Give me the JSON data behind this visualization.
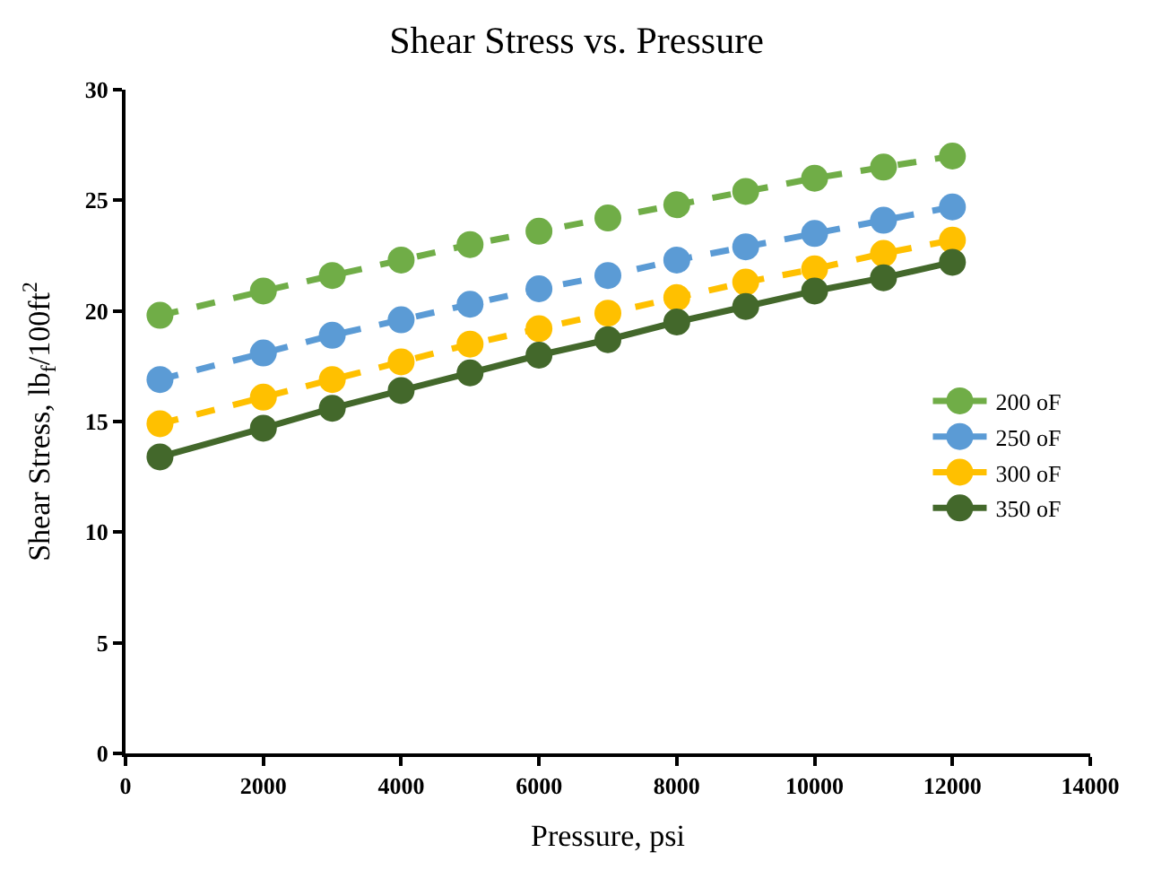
{
  "chart_data": {
    "type": "line",
    "title": "Shear Stress vs. Pressure",
    "xlabel": "Pressure, psi",
    "ylabel": "Shear Stress, lb$_{f}$/100ft$^{2}$",
    "x": [
      500,
      2000,
      3000,
      4000,
      5000,
      6000,
      7000,
      8000,
      9000,
      10000,
      11000,
      12000
    ],
    "series": [
      {
        "name": "200 oF",
        "color": "#70ad47",
        "line_style": "dashed",
        "values": [
          19.8,
          20.9,
          21.6,
          22.3,
          23.0,
          23.6,
          24.2,
          24.8,
          25.4,
          26.0,
          26.5,
          27.0
        ]
      },
      {
        "name": "250 oF",
        "color": "#5b9bd5",
        "line_style": "dashed",
        "values": [
          16.9,
          18.1,
          18.9,
          19.6,
          20.3,
          21.0,
          21.6,
          22.3,
          22.9,
          23.5,
          24.1,
          24.7
        ]
      },
      {
        "name": "300 oF",
        "color": "#ffc000",
        "line_style": "dashed",
        "values": [
          14.9,
          16.1,
          16.9,
          17.7,
          18.5,
          19.2,
          19.9,
          20.6,
          21.3,
          21.9,
          22.6,
          23.2
        ]
      },
      {
        "name": "350 oF",
        "color": "#43682b",
        "line_style": "solid",
        "values": [
          13.4,
          14.7,
          15.6,
          16.4,
          17.2,
          18.0,
          18.7,
          19.5,
          20.2,
          20.9,
          21.5,
          22.2
        ]
      }
    ],
    "xlim": [
      0,
      14000
    ],
    "xticks": [
      0,
      2000,
      4000,
      6000,
      8000,
      10000,
      12000,
      14000
    ],
    "ylim": [
      0,
      30
    ],
    "yticks": [
      0,
      5,
      10,
      15,
      20,
      25,
      30
    ],
    "legend": "right",
    "marker": "circle"
  }
}
